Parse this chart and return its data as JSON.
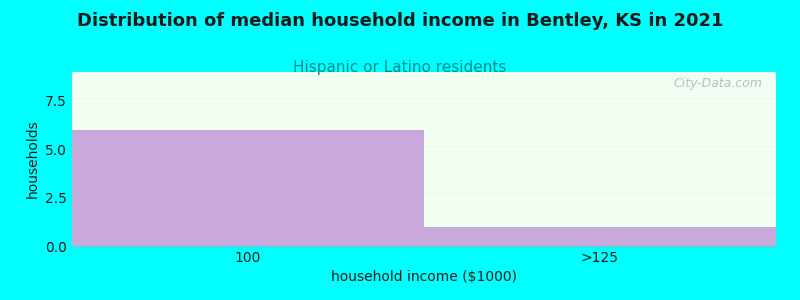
{
  "title": "Distribution of median household income in Bentley, KS in 2021",
  "subtitle": "Hispanic or Latino residents",
  "xlabel": "household income ($1000)",
  "ylabel": "households",
  "categories": [
    "100",
    ">125"
  ],
  "values": [
    6,
    1
  ],
  "bar_color": "#C9A8DC",
  "ylim": [
    0,
    9
  ],
  "yticks": [
    0,
    2.5,
    5,
    7.5
  ],
  "background_color": "#00FFFF",
  "plot_bg_color": "#F0FFF2",
  "title_fontsize": 13,
  "title_color": "#1a1a1a",
  "subtitle_fontsize": 11,
  "subtitle_color": "#008B8B",
  "watermark": "City-Data.com",
  "grid_color": "#FFFFFF",
  "axis_label_color": "#1a1a1a",
  "tick_color": "#1a1a1a"
}
